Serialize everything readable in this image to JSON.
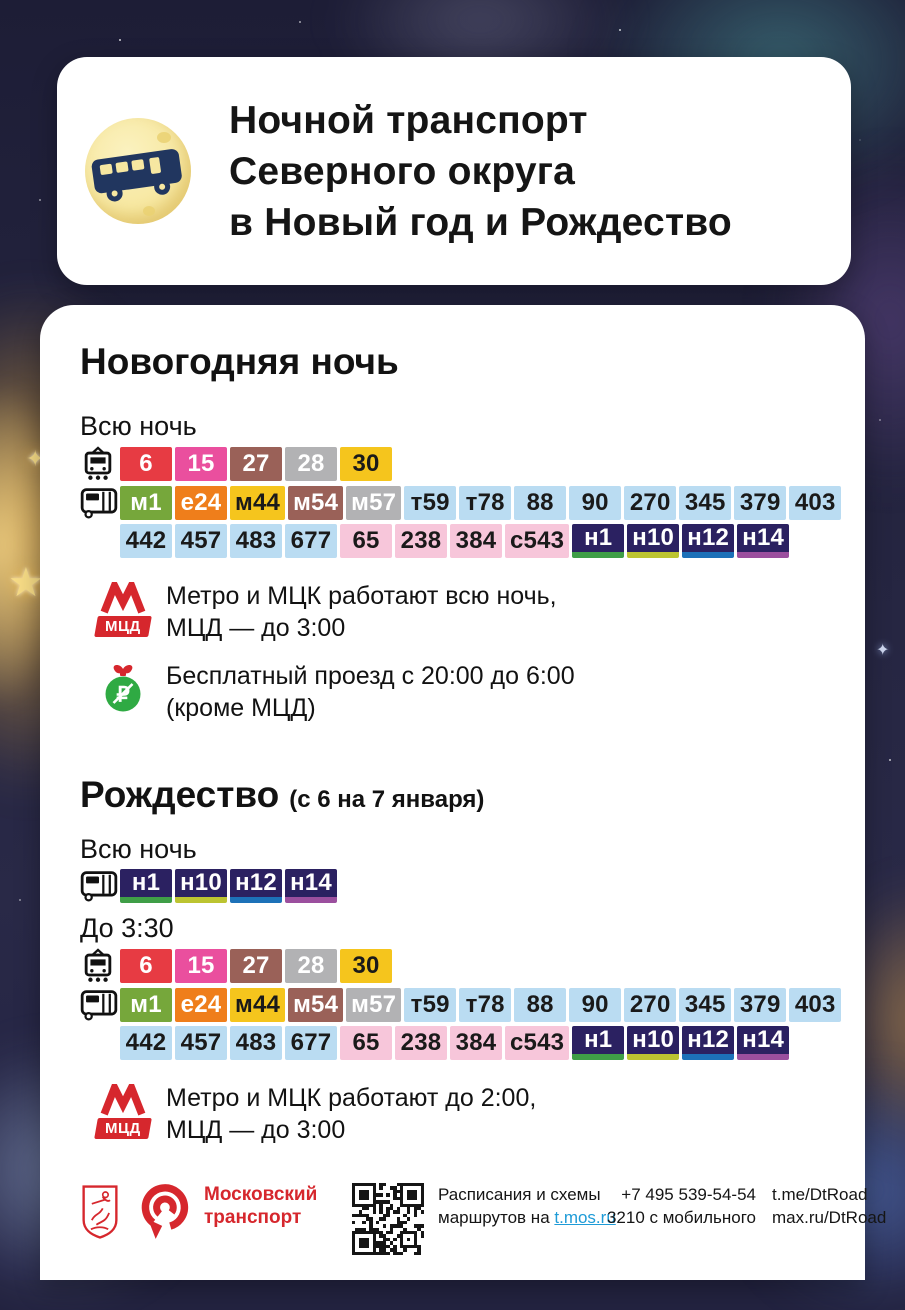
{
  "header": {
    "title_lines": [
      "Ночной транспорт",
      "Северного округа",
      "в Новый год и Рождество"
    ]
  },
  "sections": {
    "new_year": {
      "title": "Новогодняя ночь",
      "all_night_label": "Всю ночь",
      "notes": [
        {
          "icon": "metro-mcd-icon",
          "lines": [
            "Метро и МЦК работают всю ночь,",
            "МЦД — до 3:00"
          ]
        },
        {
          "icon": "free-ride-ornament-icon",
          "lines": [
            "Бесплатный проезд с 20:00 до 6:00",
            "(кроме МЦД)"
          ]
        }
      ]
    },
    "christmas": {
      "title": "Рождество",
      "title_note": "(с 6 на 7 января)",
      "all_night_label": "Всю ночь",
      "until_label": "До 3:30",
      "notes": [
        {
          "icon": "metro-mcd-icon",
          "lines": [
            "Метро и МЦК работают до 2:00,",
            "МЦД — до 3:00"
          ]
        }
      ]
    }
  },
  "routes": {
    "tram": [
      {
        "t": "6",
        "bg": "#e73b43",
        "fg": "#ffffff"
      },
      {
        "t": "15",
        "bg": "#ea4f9e",
        "fg": "#ffffff"
      },
      {
        "t": "27",
        "bg": "#9a6158",
        "fg": "#ffffff"
      },
      {
        "t": "28",
        "bg": "#b2b2b4",
        "fg": "#ffffff"
      },
      {
        "t": "30",
        "bg": "#f5c51d",
        "fg": "#1a1a1a"
      }
    ],
    "bus_row1": [
      {
        "t": "м1",
        "bg": "#76a73b",
        "fg": "#ffffff"
      },
      {
        "t": "е24",
        "bg": "#ef7e1b",
        "fg": "#ffffff"
      },
      {
        "t": "м44",
        "bg": "#f5c51d",
        "fg": "#1a1a1a"
      },
      {
        "t": "м54",
        "bg": "#9a6158",
        "fg": "#ffffff"
      },
      {
        "t": "м57",
        "bg": "#b2b2b4",
        "fg": "#ffffff"
      },
      {
        "t": "т59",
        "bg": "#badcf2",
        "fg": "#1a1a1a"
      },
      {
        "t": "т78",
        "bg": "#badcf2",
        "fg": "#1a1a1a"
      },
      {
        "t": "88",
        "bg": "#badcf2",
        "fg": "#1a1a1a"
      },
      {
        "t": "90",
        "bg": "#badcf2",
        "fg": "#1a1a1a"
      },
      {
        "t": "270",
        "bg": "#badcf2",
        "fg": "#1a1a1a"
      },
      {
        "t": "345",
        "bg": "#badcf2",
        "fg": "#1a1a1a"
      },
      {
        "t": "379",
        "bg": "#badcf2",
        "fg": "#1a1a1a"
      },
      {
        "t": "403",
        "bg": "#badcf2",
        "fg": "#1a1a1a"
      }
    ],
    "bus_row2": [
      {
        "t": "442",
        "bg": "#badcf2",
        "fg": "#1a1a1a"
      },
      {
        "t": "457",
        "bg": "#badcf2",
        "fg": "#1a1a1a"
      },
      {
        "t": "483",
        "bg": "#badcf2",
        "fg": "#1a1a1a"
      },
      {
        "t": "677",
        "bg": "#badcf2",
        "fg": "#1a1a1a"
      },
      {
        "t": "65",
        "bg": "#f7c6da",
        "fg": "#1a1a1a"
      },
      {
        "t": "238",
        "bg": "#f7c6da",
        "fg": "#1a1a1a"
      },
      {
        "t": "384",
        "bg": "#f7c6da",
        "fg": "#1a1a1a"
      },
      {
        "t": "с543",
        "bg": "#f7c6da",
        "fg": "#1a1a1a"
      },
      {
        "t": "н1",
        "bg": "#2b2161",
        "fg": "#ffffff",
        "stripe": "#3f9e47"
      },
      {
        "t": "н10",
        "bg": "#2b2161",
        "fg": "#ffffff",
        "stripe": "#bcc431"
      },
      {
        "t": "н12",
        "bg": "#2b2161",
        "fg": "#ffffff",
        "stripe": "#1d71b8"
      },
      {
        "t": "н14",
        "bg": "#2b2161",
        "fg": "#ffffff",
        "stripe": "#9b4f9e"
      }
    ],
    "night": [
      {
        "t": "н1",
        "bg": "#2b2161",
        "fg": "#ffffff",
        "stripe": "#3f9e47"
      },
      {
        "t": "н10",
        "bg": "#2b2161",
        "fg": "#ffffff",
        "stripe": "#bcc431"
      },
      {
        "t": "н12",
        "bg": "#2b2161",
        "fg": "#ffffff",
        "stripe": "#1d71b8"
      },
      {
        "t": "н14",
        "bg": "#2b2161",
        "fg": "#ffffff",
        "stripe": "#9b4f9e"
      }
    ]
  },
  "mcd_badge_label": "МЦД",
  "footer": {
    "brand_lines": [
      "Московский",
      "транспорт"
    ],
    "qr_caption_line1": "Расписания и схемы",
    "qr_caption_line2_prefix": "маршрутов на ",
    "qr_caption_link": "t.mos.ru",
    "phone_line1": "+7 495 539-54-54",
    "phone_line2": "3210 с мобильного",
    "social_line1": "t.me/DtRoad",
    "social_line2": "max.ru/DtRoad"
  },
  "colors": {
    "metro_red": "#d6272d",
    "link_blue": "#1e9bd7",
    "night_navy": "#2b2161",
    "light_blue_badge": "#badcf2",
    "pink_badge": "#f7c6da",
    "moon_yellow": "#f7e8a2",
    "card_white": "#ffffff",
    "sky_navy": "#232340"
  }
}
